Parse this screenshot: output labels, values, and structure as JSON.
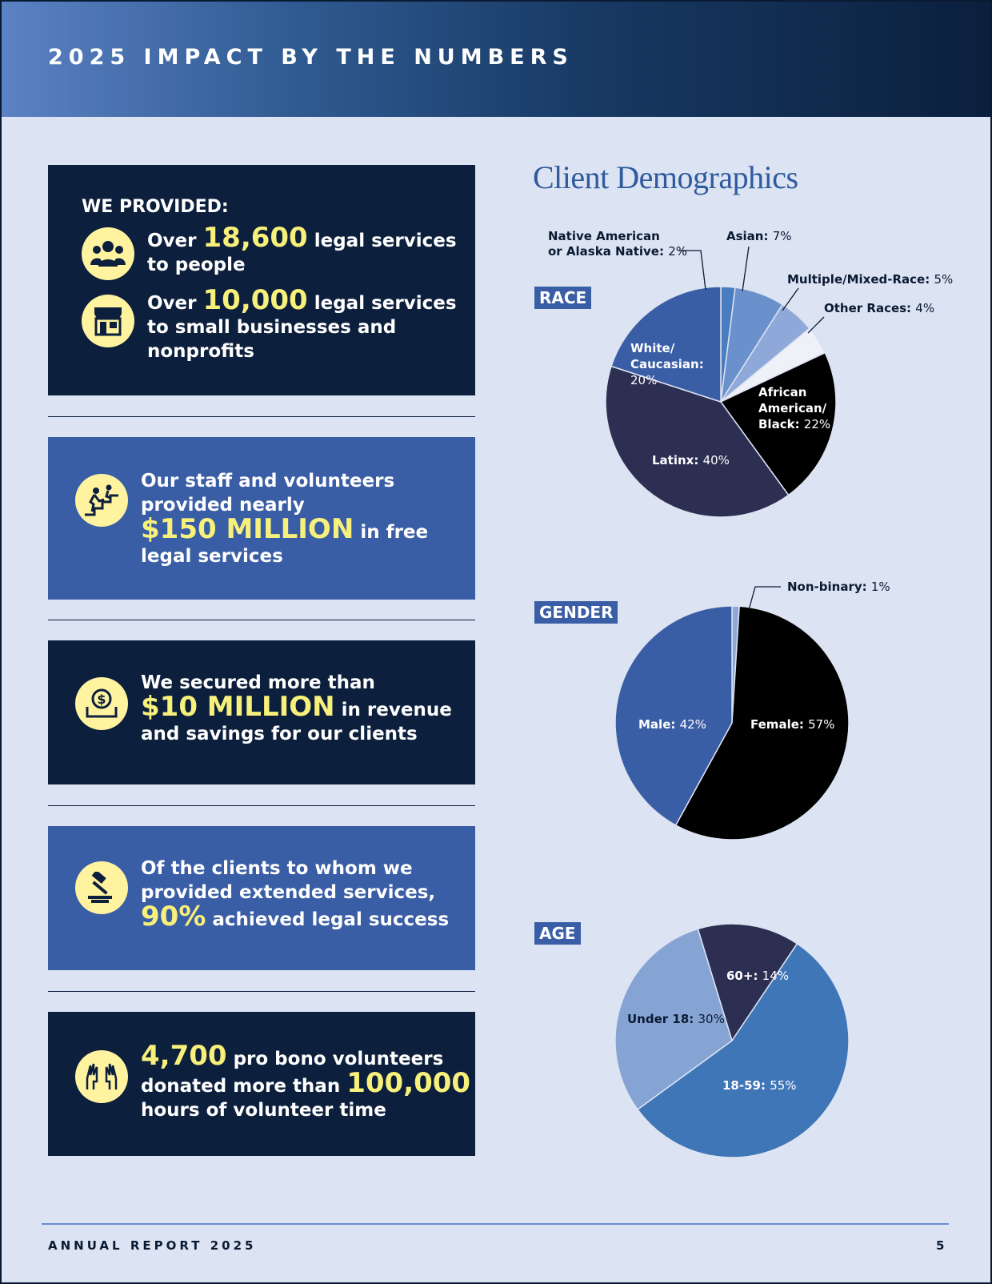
{
  "header": {
    "title": "2025 IMPACT BY THE NUMBERS"
  },
  "cards": {
    "provided": {
      "heading": "WE PROVIDED:",
      "item1": {
        "pre": "Over",
        "value": "18,600",
        "post1": "legal services",
        "post2": "to people"
      },
      "item2": {
        "pre": "Over",
        "value": "10,000",
        "post1": "legal services",
        "post2": "to small businesses and",
        "post3": "nonprofits"
      }
    },
    "free_services": {
      "line1": "Our staff and volunteers",
      "line2": "provided nearly",
      "value": "$150 MILLION",
      "post1": "in free",
      "post2": "legal services"
    },
    "revenue": {
      "line1": "We secured more than",
      "value": "$10 MILLION",
      "post1": "in revenue",
      "post2": "and savings for our clients"
    },
    "success": {
      "line1": "Of the clients to whom we",
      "line2": "provided extended services,",
      "value": "90%",
      "post1": "achieved legal success"
    },
    "volunteers": {
      "value1": "4,700",
      "post1": "pro bono volunteers",
      "pre2": "donated more than",
      "value2": "100,000",
      "post2": "hours of volunteer time"
    }
  },
  "icons": {
    "people": "people-group-icon",
    "store": "storefront-icon",
    "stairs": "climbing-stairs-icon",
    "money": "money-box-icon",
    "gavel": "gavel-icon",
    "hands": "raised-hands-icon"
  },
  "demographics_title": "Client Demographics",
  "chart_data": [
    {
      "type": "pie",
      "title": "RACE",
      "slices": [
        {
          "label": "Native American\nor Alaska Native",
          "value": 2,
          "text": "2%",
          "color": "#4a7dc0"
        },
        {
          "label": "Asian",
          "value": 7,
          "text": "7%",
          "color": "#6b91cc"
        },
        {
          "label": "Multiple/Mixed-Race",
          "value": 5,
          "text": "5%",
          "color": "#8ea9d9"
        },
        {
          "label": "Other Races",
          "value": 4,
          "text": "4%",
          "color": "#eef1f8"
        },
        {
          "label": "African American/ Black",
          "value": 22,
          "text": "22%",
          "color": "#000000"
        },
        {
          "label": "Latinx",
          "value": 40,
          "text": "40%",
          "color": "#2d2f52"
        },
        {
          "label": "White/ Caucasian",
          "value": 20,
          "text": "20%",
          "color": "#3a5ea5"
        }
      ]
    },
    {
      "type": "pie",
      "title": "GENDER",
      "slices": [
        {
          "label": "Non-binary",
          "value": 1,
          "text": "1%",
          "color": "#8ea9d9"
        },
        {
          "label": "Female",
          "value": 57,
          "text": "57%",
          "color": "#000000"
        },
        {
          "label": "Male",
          "value": 42,
          "text": "42%",
          "color": "#3a5ea5"
        }
      ]
    },
    {
      "type": "pie",
      "title": "AGE",
      "slices": [
        {
          "label": "60+",
          "value": 14,
          "text": "14%",
          "color": "#2d2f52"
        },
        {
          "label": "18-59",
          "value": 55,
          "text": "55%",
          "color": "#3f76b8"
        },
        {
          "label": "Under 18",
          "value": 30,
          "text": "30%",
          "color": "#86a4d3"
        }
      ]
    }
  ],
  "footer": {
    "left": "ANNUAL REPORT 2025",
    "page": "5"
  }
}
